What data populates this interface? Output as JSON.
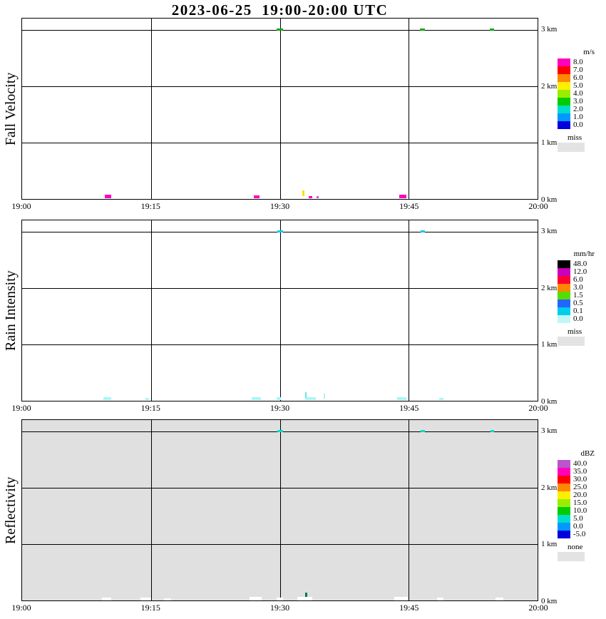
{
  "chart_data": {
    "type": "heatmap",
    "title": "2023-06-25  19:00-20:00 UTC",
    "x_axis": {
      "ticks": [
        "19:00",
        "19:15",
        "19:30",
        "19:45",
        "20:00"
      ],
      "tick_minutes": [
        0,
        15,
        30,
        45,
        60
      ],
      "gridline_minutes": [
        15,
        30,
        45
      ],
      "range_minutes": [
        0,
        60
      ]
    },
    "y_axis": {
      "ticks": [
        "0 km",
        "1 km",
        "2 km",
        "3 km"
      ],
      "tick_km": [
        0,
        1,
        2,
        3
      ],
      "gridline_km": [
        1,
        2,
        3
      ],
      "range_km": [
        0,
        3.2
      ]
    },
    "panels": [
      {
        "id": "fall-velocity",
        "ylabel": "Fall Velocity",
        "units": "m/s",
        "background": "#ffffff",
        "legend": [
          {
            "label": "8.0",
            "color": "#ff00bb"
          },
          {
            "label": "7.0",
            "color": "#ff0000"
          },
          {
            "label": "6.0",
            "color": "#ff8800"
          },
          {
            "label": "5.0",
            "color": "#ffee00"
          },
          {
            "label": "4.0",
            "color": "#99ee00"
          },
          {
            "label": "3.0",
            "color": "#00cc00"
          },
          {
            "label": "2.0",
            "color": "#00ddcc"
          },
          {
            "label": "1.0",
            "color": "#0099ff"
          },
          {
            "label": "0.0",
            "color": "#0000dd"
          }
        ],
        "missing": {
          "label": "miss",
          "color": "#e3e3e3"
        },
        "marks": [
          {
            "t": 30.0,
            "km": 3.0,
            "w": 9,
            "h": 3,
            "color": "#00aa00"
          },
          {
            "t": 46.6,
            "km": 3.0,
            "w": 7,
            "h": 3,
            "color": "#00aa00"
          },
          {
            "t": 54.7,
            "km": 3.0,
            "w": 6,
            "h": 3,
            "color": "#00aa00"
          },
          {
            "t": 10.0,
            "km": 0.05,
            "w": 9,
            "h": 5,
            "color": "#ff00bb"
          },
          {
            "t": 27.3,
            "km": 0.04,
            "w": 8,
            "h": 4,
            "color": "#ff00bb"
          },
          {
            "t": 32.7,
            "km": 0.1,
            "w": 3,
            "h": 8,
            "color": "#ffdd00"
          },
          {
            "t": 33.6,
            "km": 0.03,
            "w": 5,
            "h": 3,
            "color": "#ff00bb"
          },
          {
            "t": 34.4,
            "km": 0.03,
            "w": 3,
            "h": 3,
            "color": "#cc55cc"
          },
          {
            "t": 44.3,
            "km": 0.05,
            "w": 10,
            "h": 5,
            "color": "#ff00bb"
          }
        ]
      },
      {
        "id": "rain-intensity",
        "ylabel": "Rain Intensity",
        "units": "mm/hr",
        "background": "#ffffff",
        "legend": [
          {
            "label": "48.0",
            "color": "#000000"
          },
          {
            "label": "12.0",
            "color": "#cc00bb"
          },
          {
            "label": "6.0",
            "color": "#ff0033"
          },
          {
            "label": "3.0",
            "color": "#ff8800"
          },
          {
            "label": "1.5",
            "color": "#55dd00"
          },
          {
            "label": "0.5",
            "color": "#2266ff"
          },
          {
            "label": "0.1",
            "color": "#00ccee"
          },
          {
            "label": "0.0",
            "color": "#bff7f7"
          }
        ],
        "missing": {
          "label": "miss",
          "color": "#e3e3e3"
        },
        "marks": [
          {
            "t": 30.0,
            "km": 3.0,
            "w": 8,
            "h": 3,
            "color": "#00ccee"
          },
          {
            "t": 46.6,
            "km": 3.0,
            "w": 6,
            "h": 3,
            "color": "#00ccee"
          },
          {
            "t": 9.9,
            "km": 0.04,
            "w": 11,
            "h": 4,
            "color": "#aaf5f5"
          },
          {
            "t": 14.6,
            "km": 0.03,
            "w": 5,
            "h": 3,
            "color": "#aaf5f5"
          },
          {
            "t": 27.3,
            "km": 0.04,
            "w": 13,
            "h": 4,
            "color": "#aaf5f5"
          },
          {
            "t": 29.9,
            "km": 0.04,
            "w": 6,
            "h": 4,
            "color": "#aaf5f5"
          },
          {
            "t": 33.0,
            "km": 0.1,
            "w": 2,
            "h": 9,
            "color": "#66e5e5"
          },
          {
            "t": 33.6,
            "km": 0.04,
            "w": 14,
            "h": 4,
            "color": "#aaf5f5"
          },
          {
            "t": 35.2,
            "km": 0.08,
            "w": 2,
            "h": 7,
            "color": "#aaf5f5"
          },
          {
            "t": 44.2,
            "km": 0.04,
            "w": 13,
            "h": 4,
            "color": "#aaf5f5"
          },
          {
            "t": 48.8,
            "km": 0.03,
            "w": 6,
            "h": 3,
            "color": "#aaf5f5"
          }
        ]
      },
      {
        "id": "reflectivity",
        "ylabel": "Reflectivity",
        "units": "dBZ",
        "background": "#e0e0e0",
        "legend": [
          {
            "label": "40.0",
            "color": "#bb55cc"
          },
          {
            "label": "35.0",
            "color": "#ff00bb"
          },
          {
            "label": "30.0",
            "color": "#ff0000"
          },
          {
            "label": "25.0",
            "color": "#ff8800"
          },
          {
            "label": "20.0",
            "color": "#ffee00"
          },
          {
            "label": "15.0",
            "color": "#99ee00"
          },
          {
            "label": "10.0",
            "color": "#00cc00"
          },
          {
            "label": "5.0",
            "color": "#00ddcc"
          },
          {
            "label": "0.0",
            "color": "#0099ff"
          },
          {
            "label": "-5.0",
            "color": "#0000dd"
          }
        ],
        "missing": {
          "label": "none",
          "color": "#e3e3e3"
        },
        "marks": [
          {
            "t": 30.0,
            "km": 3.0,
            "w": 8,
            "h": 3,
            "color": "#00ddcc"
          },
          {
            "t": 46.6,
            "km": 3.0,
            "w": 6,
            "h": 3,
            "color": "#00ddcc"
          },
          {
            "t": 54.7,
            "km": 3.0,
            "w": 5,
            "h": 3,
            "color": "#00ddcc"
          },
          {
            "t": 9.8,
            "km": 0.03,
            "w": 13,
            "h": 4,
            "color": "#ffffff"
          },
          {
            "t": 14.4,
            "km": 0.02,
            "w": 15,
            "h": 4,
            "color": "#ffffff"
          },
          {
            "t": 16.9,
            "km": 0.02,
            "w": 10,
            "h": 3,
            "color": "#ffffff"
          },
          {
            "t": 27.2,
            "km": 0.03,
            "w": 17,
            "h": 5,
            "color": "#ffffff"
          },
          {
            "t": 30.0,
            "km": 0.03,
            "w": 9,
            "h": 4,
            "color": "#ffffff"
          },
          {
            "t": 32.9,
            "km": 0.03,
            "w": 21,
            "h": 5,
            "color": "#ffffff"
          },
          {
            "t": 33.1,
            "km": 0.1,
            "w": 3,
            "h": 6,
            "color": "#007755"
          },
          {
            "t": 44.1,
            "km": 0.03,
            "w": 19,
            "h": 5,
            "color": "#ffffff"
          },
          {
            "t": 48.7,
            "km": 0.02,
            "w": 9,
            "h": 4,
            "color": "#ffffff"
          },
          {
            "t": 55.6,
            "km": 0.02,
            "w": 11,
            "h": 4,
            "color": "#ffffff"
          }
        ]
      }
    ]
  }
}
